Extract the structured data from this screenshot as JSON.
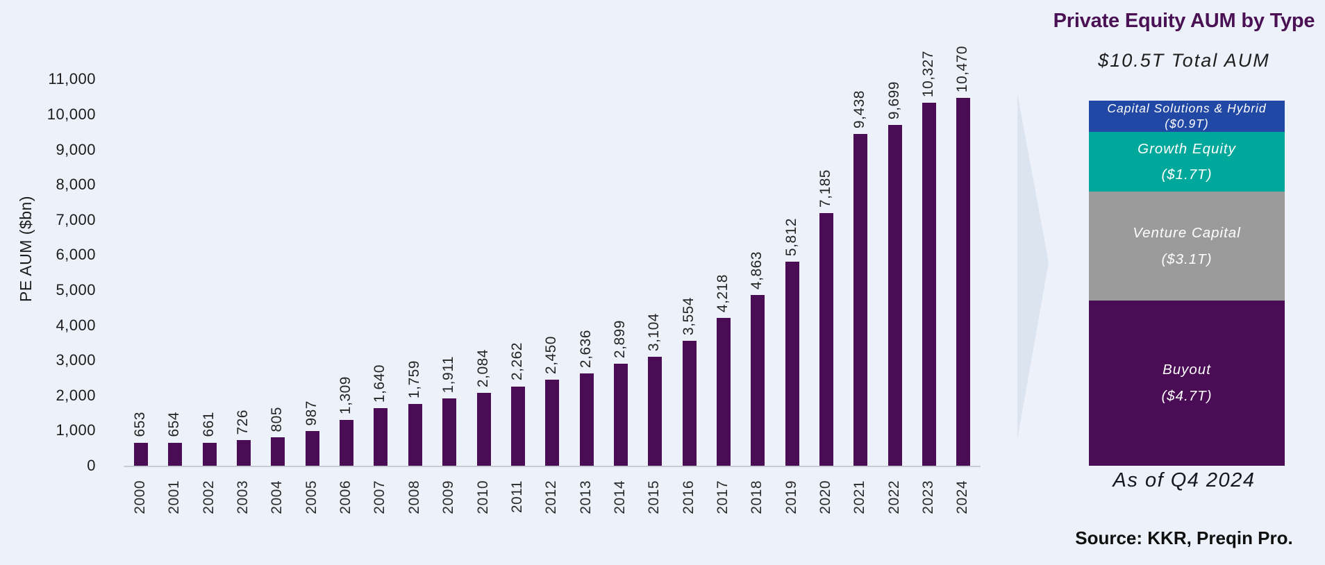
{
  "colors": {
    "background": "#edf2fa",
    "bar": "#4a0c55",
    "axis_line": "#c7cbd4",
    "panel_title": "#4a1254",
    "text_dark": "#1c1c1c"
  },
  "chart_data": [
    {
      "type": "bar",
      "name": "pe-aum-by-year",
      "title": "",
      "xlabel": "",
      "ylabel": "PE AUM ($bn)",
      "ylim": [
        0,
        11000
      ],
      "ytick_step": 1000,
      "grid": false,
      "legend_position": "none",
      "bar_color": "#4a0c55",
      "categories": [
        "2000",
        "2001",
        "2002",
        "2003",
        "2004",
        "2005",
        "2006",
        "2007",
        "2008",
        "2009",
        "2010",
        "2011",
        "2012",
        "2013",
        "2014",
        "2015",
        "2016",
        "2017",
        "2018",
        "2019",
        "2020",
        "2021",
        "2022",
        "2023",
        "2024"
      ],
      "values": [
        653,
        654,
        661,
        726,
        805,
        987,
        1309,
        1640,
        1759,
        1911,
        2084,
        2262,
        2450,
        2636,
        2899,
        3104,
        3554,
        4218,
        4863,
        5812,
        7185,
        9438,
        9699,
        10327,
        10470
      ]
    },
    {
      "type": "bar",
      "subtype": "stacked-single-column",
      "name": "pe-aum-by-type",
      "title": "Private Equity AUM by Type",
      "subtitle": "$10.5T Total AUM",
      "as_of": "As of Q4 2024",
      "source": "Source: KKR, Preqin Pro.",
      "unit": "$T",
      "segments": [
        {
          "name": "Capital Solutions & Hybrid",
          "value_label": "($0.9T)",
          "value_t": 0.9,
          "color": "#2148a5"
        },
        {
          "name": "Growth Equity",
          "value_label": "($1.7T)",
          "value_t": 1.7,
          "color": "#00a89c"
        },
        {
          "name": "Venture Capital",
          "value_label": "($3.1T)",
          "value_t": 3.1,
          "color": "#9b9b9b"
        },
        {
          "name": "Buyout",
          "value_label": "($4.7T)",
          "value_t": 4.7,
          "color": "#4a0c55"
        }
      ]
    }
  ]
}
